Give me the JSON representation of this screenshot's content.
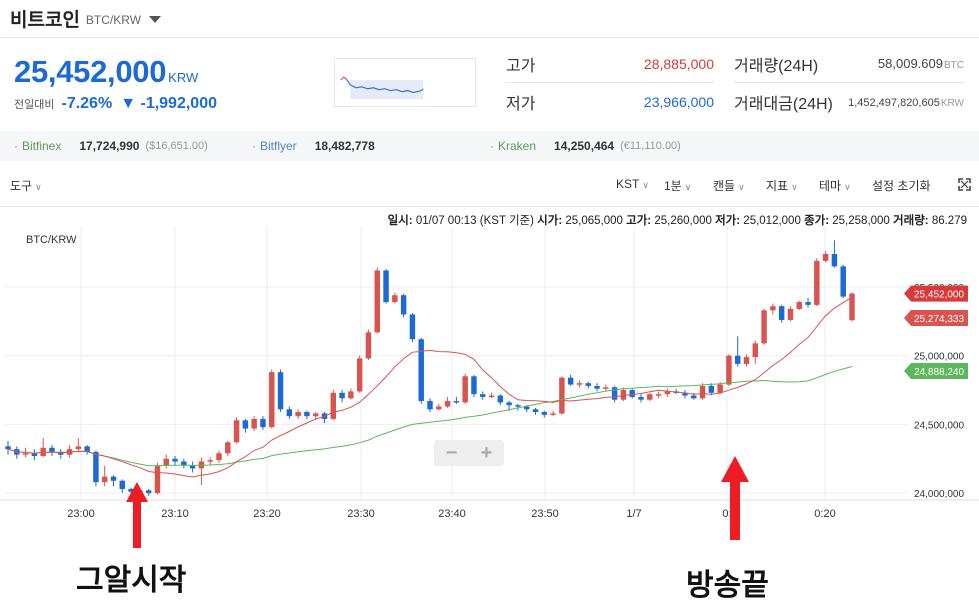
{
  "header": {
    "coin_name": "비트코인",
    "pair": "BTC/KRW"
  },
  "price": {
    "current": "25,452,000",
    "unit": "KRW",
    "change_label": "전일대비",
    "change_pct": "-7.26%",
    "change_arrow": "▼",
    "change_amount": "-1,992,000"
  },
  "stats": {
    "high_label": "고가",
    "high_value": "28,885,000",
    "low_label": "저가",
    "low_value": "23,966,000",
    "volume_label": "거래량(24H)",
    "volume_value": "58,009.609",
    "volume_unit": "BTC",
    "amount_label": "거래대금(24H)",
    "amount_value": "1,452,497,820,605",
    "amount_unit": "KRW"
  },
  "exchanges": [
    {
      "name": "Bitfinex",
      "value": "17,724,990",
      "sub": "($16,651.00)"
    },
    {
      "name": "Bitflyer",
      "value": "18,482,778",
      "sub": ""
    },
    {
      "name": "Kraken",
      "value": "14,250,464",
      "sub": "(€11,110.00)"
    }
  ],
  "toolbar": {
    "tools": "도구",
    "timezone": "KST",
    "interval": "1분",
    "chart_type": "캔들",
    "indicators": "지표",
    "theme": "테마",
    "settings": "설정 초기화"
  },
  "ohlc": {
    "time_label": "일시:",
    "time_value": "01/07 00:13 (KST 기준)",
    "open_label": "시가:",
    "open_value": "25,065,000",
    "high_label": "고가:",
    "high_value": "25,260,000",
    "low_label": "저가:",
    "low_value": "25,012,000",
    "close_label": "종가:",
    "close_value": "25,258,000",
    "volume_label": "거래량:",
    "volume_value": "86.279"
  },
  "annotations": {
    "left": "그알시작",
    "right": "방송끝"
  },
  "colors": {
    "up": "#d9534f",
    "down": "#1c6ad6",
    "ma_short": "#d9534f",
    "ma_long": "#5cb85c",
    "arrow": "#ee1c25"
  },
  "chart_data": {
    "type": "candlestick",
    "title": "BTC/KRW",
    "x_ticks": [
      "23:00",
      "23:10",
      "23:20",
      "23:30",
      "23:40",
      "23:50",
      "1/7",
      "0:",
      "0:20"
    ],
    "y_ticks": [
      "24,000,000",
      "24,500,000",
      "25,000,000",
      "25,500,000"
    ],
    "ylim": [
      23950000,
      25900000
    ],
    "price_labels": [
      {
        "value": 25452000,
        "text": "25,452,000",
        "color": "#d73a3a"
      },
      {
        "value": 25274333,
        "text": "25,274,333",
        "color": "#d9534f"
      },
      {
        "value": 24888240,
        "text": "24,888,240",
        "color": "#5cb85c"
      }
    ],
    "candles": [
      [
        24340000,
        24320000,
        24380000,
        24280000
      ],
      [
        24320000,
        24280000,
        24340000,
        24250000
      ],
      [
        24280000,
        24290000,
        24330000,
        24260000
      ],
      [
        24290000,
        24270000,
        24320000,
        24240000
      ],
      [
        24270000,
        24330000,
        24400000,
        24260000
      ],
      [
        24330000,
        24300000,
        24350000,
        24270000
      ],
      [
        24300000,
        24280000,
        24320000,
        24250000
      ],
      [
        24280000,
        24320000,
        24350000,
        24260000
      ],
      [
        24320000,
        24340000,
        24400000,
        24300000
      ],
      [
        24340000,
        24300000,
        24350000,
        24280000
      ],
      [
        24300000,
        24080000,
        24310000,
        24050000
      ],
      [
        24080000,
        24120000,
        24200000,
        24050000
      ],
      [
        24120000,
        24090000,
        24130000,
        24050000
      ],
      [
        24090000,
        24030000,
        24100000,
        24000000
      ],
      [
        24030000,
        24010000,
        24040000,
        23990000
      ],
      [
        24010000,
        24020000,
        24040000,
        23990000
      ],
      [
        24020000,
        24000000,
        24030000,
        23980000
      ],
      [
        24000000,
        24200000,
        24220000,
        23990000
      ],
      [
        24200000,
        24250000,
        24280000,
        24180000
      ],
      [
        24250000,
        24230000,
        24270000,
        24200000
      ],
      [
        24230000,
        24200000,
        24250000,
        24180000
      ],
      [
        24200000,
        24180000,
        24230000,
        24150000
      ],
      [
        24180000,
        24230000,
        24260000,
        24060000
      ],
      [
        24230000,
        24240000,
        24260000,
        24200000
      ],
      [
        24240000,
        24290000,
        24310000,
        24220000
      ],
      [
        24290000,
        24370000,
        24380000,
        24270000
      ],
      [
        24370000,
        24530000,
        24550000,
        24360000
      ],
      [
        24530000,
        24470000,
        24540000,
        24440000
      ],
      [
        24470000,
        24540000,
        24560000,
        24450000
      ],
      [
        24540000,
        24480000,
        24560000,
        24460000
      ],
      [
        24480000,
        24880000,
        24900000,
        24470000
      ],
      [
        24880000,
        24610000,
        24900000,
        24590000
      ],
      [
        24610000,
        24560000,
        24630000,
        24540000
      ],
      [
        24560000,
        24590000,
        24610000,
        24540000
      ],
      [
        24590000,
        24560000,
        24600000,
        24540000
      ],
      [
        24560000,
        24580000,
        24590000,
        24540000
      ],
      [
        24580000,
        24540000,
        24590000,
        24510000
      ],
      [
        24540000,
        24730000,
        24750000,
        24530000
      ],
      [
        24730000,
        24690000,
        24750000,
        24660000
      ],
      [
        24690000,
        24740000,
        24760000,
        24680000
      ],
      [
        24740000,
        24980000,
        25000000,
        24730000
      ],
      [
        24980000,
        25170000,
        25190000,
        24970000
      ],
      [
        25170000,
        25620000,
        25640000,
        25160000
      ],
      [
        25620000,
        25390000,
        25630000,
        25380000
      ],
      [
        25390000,
        25440000,
        25460000,
        25380000
      ],
      [
        25440000,
        25300000,
        25450000,
        25280000
      ],
      [
        25300000,
        25120000,
        25310000,
        25100000
      ],
      [
        25120000,
        24670000,
        25130000,
        24650000
      ],
      [
        24670000,
        24610000,
        24690000,
        24590000
      ],
      [
        24610000,
        24630000,
        24650000,
        24600000
      ],
      [
        24630000,
        24670000,
        24700000,
        24620000
      ],
      [
        24670000,
        24660000,
        24700000,
        24650000
      ],
      [
        24660000,
        24850000,
        24870000,
        24650000
      ],
      [
        24850000,
        24720000,
        24860000,
        24700000
      ],
      [
        24720000,
        24700000,
        24740000,
        24680000
      ],
      [
        24700000,
        24710000,
        24730000,
        24690000
      ],
      [
        24710000,
        24660000,
        24720000,
        24640000
      ],
      [
        24660000,
        24640000,
        24670000,
        24600000
      ],
      [
        24640000,
        24630000,
        24650000,
        24600000
      ],
      [
        24630000,
        24610000,
        24640000,
        24590000
      ],
      [
        24610000,
        24590000,
        24620000,
        24570000
      ],
      [
        24590000,
        24570000,
        24600000,
        24550000
      ],
      [
        24570000,
        24580000,
        24600000,
        24560000
      ],
      [
        24580000,
        24840000,
        24850000,
        24570000
      ],
      [
        24840000,
        24790000,
        24860000,
        24780000
      ],
      [
        24790000,
        24800000,
        24820000,
        24770000
      ],
      [
        24800000,
        24780000,
        24810000,
        24760000
      ],
      [
        24780000,
        24760000,
        24800000,
        24740000
      ],
      [
        24760000,
        24770000,
        24790000,
        24740000
      ],
      [
        24770000,
        24680000,
        24780000,
        24660000
      ],
      [
        24680000,
        24750000,
        24770000,
        24670000
      ],
      [
        24750000,
        24700000,
        24760000,
        24690000
      ],
      [
        24700000,
        24680000,
        24720000,
        24660000
      ],
      [
        24680000,
        24720000,
        24730000,
        24670000
      ],
      [
        24720000,
        24720000,
        24740000,
        24690000
      ],
      [
        24720000,
        24740000,
        24760000,
        24700000
      ],
      [
        24740000,
        24730000,
        24760000,
        24720000
      ],
      [
        24730000,
        24710000,
        24750000,
        24690000
      ],
      [
        24710000,
        24690000,
        24730000,
        24680000
      ],
      [
        24690000,
        24780000,
        24800000,
        24680000
      ],
      [
        24780000,
        24730000,
        24800000,
        24710000
      ],
      [
        24730000,
        24790000,
        24810000,
        24720000
      ],
      [
        24790000,
        25000000,
        25010000,
        24780000
      ],
      [
        25000000,
        24940000,
        25140000,
        24920000
      ],
      [
        24940000,
        24990000,
        25010000,
        24920000
      ],
      [
        24990000,
        25090000,
        25110000,
        24940000
      ],
      [
        25090000,
        25330000,
        25340000,
        25080000
      ],
      [
        25330000,
        25360000,
        25380000,
        25300000
      ],
      [
        25360000,
        25260000,
        25370000,
        25240000
      ],
      [
        25260000,
        25340000,
        25360000,
        25250000
      ],
      [
        25340000,
        25390000,
        25400000,
        25330000
      ],
      [
        25390000,
        25370000,
        25420000,
        25350000
      ],
      [
        25370000,
        25690000,
        25710000,
        25360000
      ],
      [
        25690000,
        25740000,
        25760000,
        25680000
      ],
      [
        25740000,
        25650000,
        25840000,
        25640000
      ],
      [
        25650000,
        25430000,
        25660000,
        25420000
      ],
      [
        25258000,
        25452000,
        25460000,
        25250000
      ]
    ]
  }
}
